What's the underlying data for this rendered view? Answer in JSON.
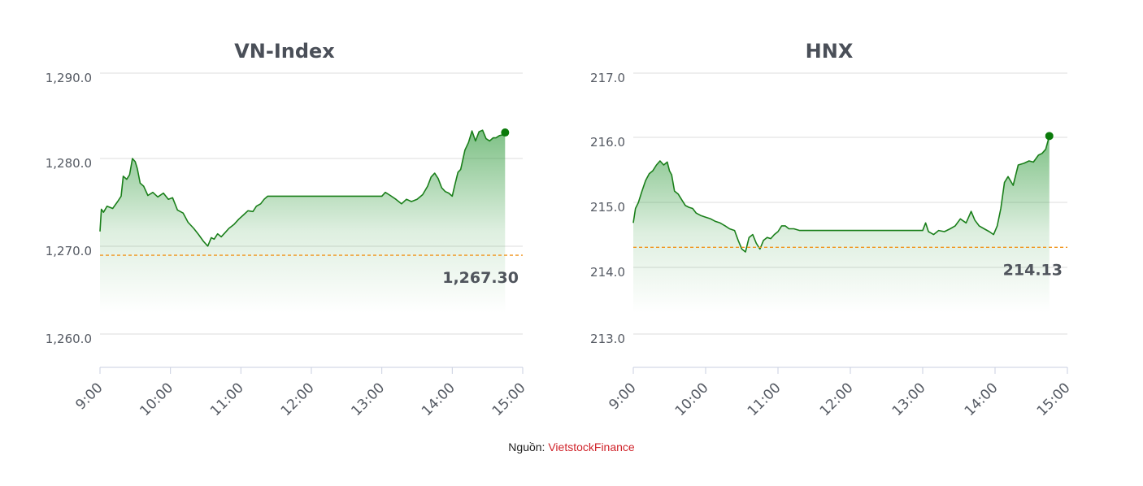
{
  "source": {
    "label": "Nguồn:",
    "brand": "VietstockFinance"
  },
  "colors": {
    "line": "#1a7f1a",
    "fill": "#2e9a3a",
    "reference": "#f0951e",
    "marker": "#0a7a0a"
  },
  "chart_data": [
    {
      "type": "area",
      "title": "VN-Index",
      "x_ticks": [
        "9:00",
        "10:00",
        "11:00",
        "12:00",
        "13:00",
        "14:00",
        "15:00"
      ],
      "y_ticks": [
        "1,290.0",
        "1,280.0",
        "1,270.0",
        "1,260.0"
      ],
      "ylim": [
        1256.4,
        1290.4
      ],
      "grid": true,
      "reference": {
        "value": 1267.3,
        "label": "1,267.30"
      },
      "x_unit": "hours",
      "x": [
        9.0,
        9.02,
        9.05,
        9.1,
        9.18,
        9.25,
        9.3,
        9.33,
        9.38,
        9.42,
        9.46,
        9.5,
        9.53,
        9.57,
        9.62,
        9.68,
        9.75,
        9.82,
        9.9,
        9.97,
        10.03,
        10.1,
        10.18,
        10.25,
        10.33,
        10.4,
        10.47,
        10.53,
        10.58,
        10.62,
        10.67,
        10.72,
        10.78,
        10.83,
        10.9,
        10.97,
        11.03,
        11.1,
        11.17,
        11.22,
        11.28,
        11.33,
        11.38,
        11.42,
        11.5,
        11.75,
        12.0,
        12.25,
        12.5,
        12.75,
        13.0,
        13.05,
        13.12,
        13.2,
        13.28,
        13.35,
        13.42,
        13.5,
        13.58,
        13.65,
        13.7,
        13.75,
        13.8,
        13.85,
        13.9,
        13.95,
        14.0,
        14.03,
        14.08,
        14.12,
        14.18,
        14.23,
        14.28,
        14.33,
        14.38,
        14.43,
        14.48,
        14.53,
        14.58,
        14.62,
        14.67,
        14.72,
        14.75
      ],
      "y": [
        1270.4,
        1273.3,
        1272.9,
        1273.7,
        1273.4,
        1274.3,
        1275.0,
        1277.6,
        1277.2,
        1277.8,
        1279.9,
        1279.5,
        1278.6,
        1276.7,
        1276.3,
        1275.1,
        1275.5,
        1274.9,
        1275.4,
        1274.6,
        1274.8,
        1273.2,
        1272.8,
        1271.6,
        1270.8,
        1270.0,
        1269.1,
        1268.5,
        1269.6,
        1269.4,
        1270.1,
        1269.7,
        1270.3,
        1270.8,
        1271.3,
        1272.0,
        1272.5,
        1273.1,
        1273.0,
        1273.7,
        1274.0,
        1274.6,
        1275.0,
        1275.0,
        1275.0,
        1275.0,
        1275.0,
        1275.0,
        1275.0,
        1275.0,
        1275.0,
        1275.5,
        1275.1,
        1274.6,
        1274.0,
        1274.6,
        1274.3,
        1274.6,
        1275.2,
        1276.3,
        1277.5,
        1278.0,
        1277.3,
        1276.1,
        1275.6,
        1275.4,
        1275.0,
        1276.2,
        1278.1,
        1278.5,
        1281.0,
        1282.0,
        1283.5,
        1282.2,
        1283.4,
        1283.6,
        1282.5,
        1282.2,
        1282.6,
        1282.6,
        1282.9,
        1283.0,
        1283.3
      ]
    },
    {
      "type": "area",
      "title": "HNX",
      "x_ticks": [
        "9:00",
        "10:00",
        "11:00",
        "12:00",
        "13:00",
        "14:00",
        "15:00"
      ],
      "y_ticks": [
        "217.0",
        "216.0",
        "215.0",
        "214.0",
        "213.0"
      ],
      "ylim": [
        212.55,
        217.05
      ],
      "grid": true,
      "reference": {
        "value": 214.13,
        "label": "214.13"
      },
      "x_unit": "hours",
      "x": [
        9.0,
        9.03,
        9.07,
        9.12,
        9.17,
        9.22,
        9.27,
        9.32,
        9.37,
        9.42,
        9.47,
        9.5,
        9.53,
        9.57,
        9.62,
        9.67,
        9.72,
        9.77,
        9.82,
        9.87,
        9.93,
        10.0,
        10.07,
        10.13,
        10.2,
        10.27,
        10.33,
        10.4,
        10.45,
        10.5,
        10.55,
        10.6,
        10.65,
        10.7,
        10.75,
        10.8,
        10.85,
        10.9,
        10.95,
        11.0,
        11.05,
        11.1,
        11.15,
        11.22,
        11.3,
        11.4,
        11.5,
        11.75,
        12.0,
        12.25,
        12.5,
        12.75,
        13.0,
        13.04,
        13.08,
        13.15,
        13.22,
        13.3,
        13.38,
        13.45,
        13.52,
        13.6,
        13.67,
        13.72,
        13.78,
        13.85,
        13.92,
        13.98,
        14.03,
        14.08,
        14.13,
        14.18,
        14.25,
        14.32,
        14.4,
        14.47,
        14.53,
        14.6,
        14.65,
        14.7,
        14.75
      ],
      "y": [
        214.55,
        214.8,
        214.9,
        215.1,
        215.28,
        215.4,
        215.45,
        215.55,
        215.62,
        215.55,
        215.6,
        215.45,
        215.38,
        215.1,
        215.05,
        214.95,
        214.85,
        214.82,
        214.8,
        214.72,
        214.68,
        214.65,
        214.62,
        214.58,
        214.55,
        214.5,
        214.45,
        214.42,
        214.25,
        214.1,
        214.05,
        214.3,
        214.35,
        214.2,
        214.1,
        214.25,
        214.3,
        214.28,
        214.35,
        214.4,
        214.5,
        214.5,
        214.45,
        214.45,
        214.42,
        214.42,
        214.42,
        214.42,
        214.42,
        214.42,
        214.42,
        214.42,
        214.42,
        214.55,
        214.4,
        214.35,
        214.42,
        214.4,
        214.45,
        214.5,
        214.62,
        214.55,
        214.75,
        214.6,
        214.5,
        214.45,
        214.4,
        214.35,
        214.5,
        214.8,
        215.25,
        215.35,
        215.2,
        215.55,
        215.58,
        215.62,
        215.6,
        215.72,
        215.75,
        215.82,
        216.05
      ]
    }
  ]
}
